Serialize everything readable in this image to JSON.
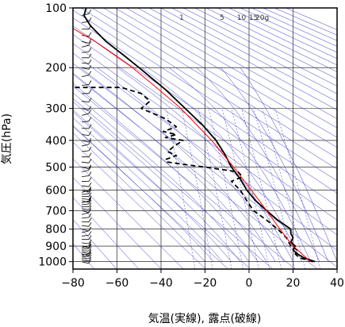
{
  "chart_data": {
    "type": "line",
    "diagram": "Stuve",
    "xlabel": "気温(実線), 露点(破線)",
    "ylabel": "気圧(hPa)",
    "xlim": [
      -80,
      40
    ],
    "ylim_hpa": [
      1050,
      100
    ],
    "x_ticks": [
      "−80",
      "−60",
      "−40",
      "−20",
      "0",
      "20",
      "40"
    ],
    "x_tick_values": [
      -80,
      -60,
      -40,
      -20,
      0,
      20,
      40
    ],
    "y_ticks": [
      "100",
      "200",
      "300",
      "400",
      "500",
      "600",
      "700",
      "800",
      "900",
      "1000"
    ],
    "y_tick_values": [
      100,
      200,
      300,
      400,
      500,
      600,
      700,
      800,
      900,
      1000
    ],
    "mixing_ratio_labels": [
      {
        "text": "1",
        "value": 1
      },
      {
        "text": "5",
        "value": 5
      },
      {
        "text": "10",
        "value": 10
      },
      {
        "text": "15",
        "value": 15
      },
      {
        "text": "20g",
        "value": 20
      }
    ],
    "colors": {
      "temperature": "#000000",
      "dewpoint": "#000000",
      "parcel": "#ff0000",
      "background_lines": "#3333cc",
      "frame": "#000000",
      "grid": "#000000",
      "wind_barbs": "#000000"
    },
    "series": [
      {
        "kind": "temperature",
        "style": "solid",
        "points": [
          [
            1000,
            30
          ],
          [
            975,
            25
          ],
          [
            950,
            22
          ],
          [
            925,
            20
          ],
          [
            900,
            21
          ],
          [
            875,
            19
          ],
          [
            850,
            20
          ],
          [
            825,
            19
          ],
          [
            800,
            19
          ],
          [
            750,
            13
          ],
          [
            700,
            8
          ],
          [
            650,
            3
          ],
          [
            600,
            -1
          ],
          [
            550,
            -4
          ],
          [
            500,
            -8
          ],
          [
            450,
            -11
          ],
          [
            400,
            -15
          ],
          [
            350,
            -21
          ],
          [
            300,
            -29
          ],
          [
            250,
            -38
          ],
          [
            200,
            -50
          ],
          [
            175,
            -57
          ],
          [
            150,
            -65
          ],
          [
            125,
            -72
          ],
          [
            110,
            -75
          ],
          [
            100,
            -74
          ]
        ]
      },
      {
        "kind": "dewpoint",
        "style": "dashed",
        "points": [
          [
            1000,
            29
          ],
          [
            975,
            23
          ],
          [
            950,
            21
          ],
          [
            925,
            22
          ],
          [
            900,
            19
          ],
          [
            875,
            18
          ],
          [
            850,
            17
          ],
          [
            825,
            15
          ],
          [
            800,
            13
          ],
          [
            750,
            8
          ],
          [
            700,
            2
          ],
          [
            650,
            -1
          ],
          [
            600,
            -4
          ],
          [
            560,
            -8
          ],
          [
            540,
            -3
          ],
          [
            520,
            -5
          ],
          [
            500,
            -20
          ],
          [
            490,
            -29
          ],
          [
            480,
            -37
          ],
          [
            470,
            -38
          ],
          [
            455,
            -33
          ],
          [
            440,
            -37
          ],
          [
            420,
            -34
          ],
          [
            400,
            -30
          ],
          [
            390,
            -38
          ],
          [
            380,
            -33
          ],
          [
            370,
            -39
          ],
          [
            355,
            -33
          ],
          [
            330,
            -38
          ],
          [
            300,
            -49
          ],
          [
            280,
            -45
          ],
          [
            260,
            -49
          ],
          [
            245,
            -58
          ],
          [
            245,
            -82
          ]
        ]
      },
      {
        "kind": "parcel",
        "style": "solid",
        "points": [
          [
            1000,
            28
          ],
          [
            900,
            20
          ],
          [
            800,
            14
          ],
          [
            700,
            8
          ],
          [
            600,
            1
          ],
          [
            500,
            -7
          ],
          [
            400,
            -17
          ],
          [
            300,
            -31
          ],
          [
            250,
            -41
          ],
          [
            200,
            -53
          ],
          [
            150,
            -70
          ],
          [
            125,
            -82
          ]
        ]
      }
    ],
    "wind_profile": {
      "pressures": [
        1000,
        990,
        980,
        970,
        960,
        950,
        940,
        930,
        920,
        910,
        900,
        880,
        860,
        840,
        820,
        800,
        780,
        760,
        740,
        720,
        700,
        690,
        680,
        670,
        660,
        650,
        640,
        630,
        620,
        610,
        600,
        580,
        560,
        540,
        520,
        500,
        480,
        460,
        440,
        420,
        400,
        380,
        360,
        340,
        320,
        300,
        280,
        260,
        240,
        220,
        200,
        190,
        180,
        170,
        160,
        150,
        140,
        130,
        120,
        110
      ]
    }
  }
}
